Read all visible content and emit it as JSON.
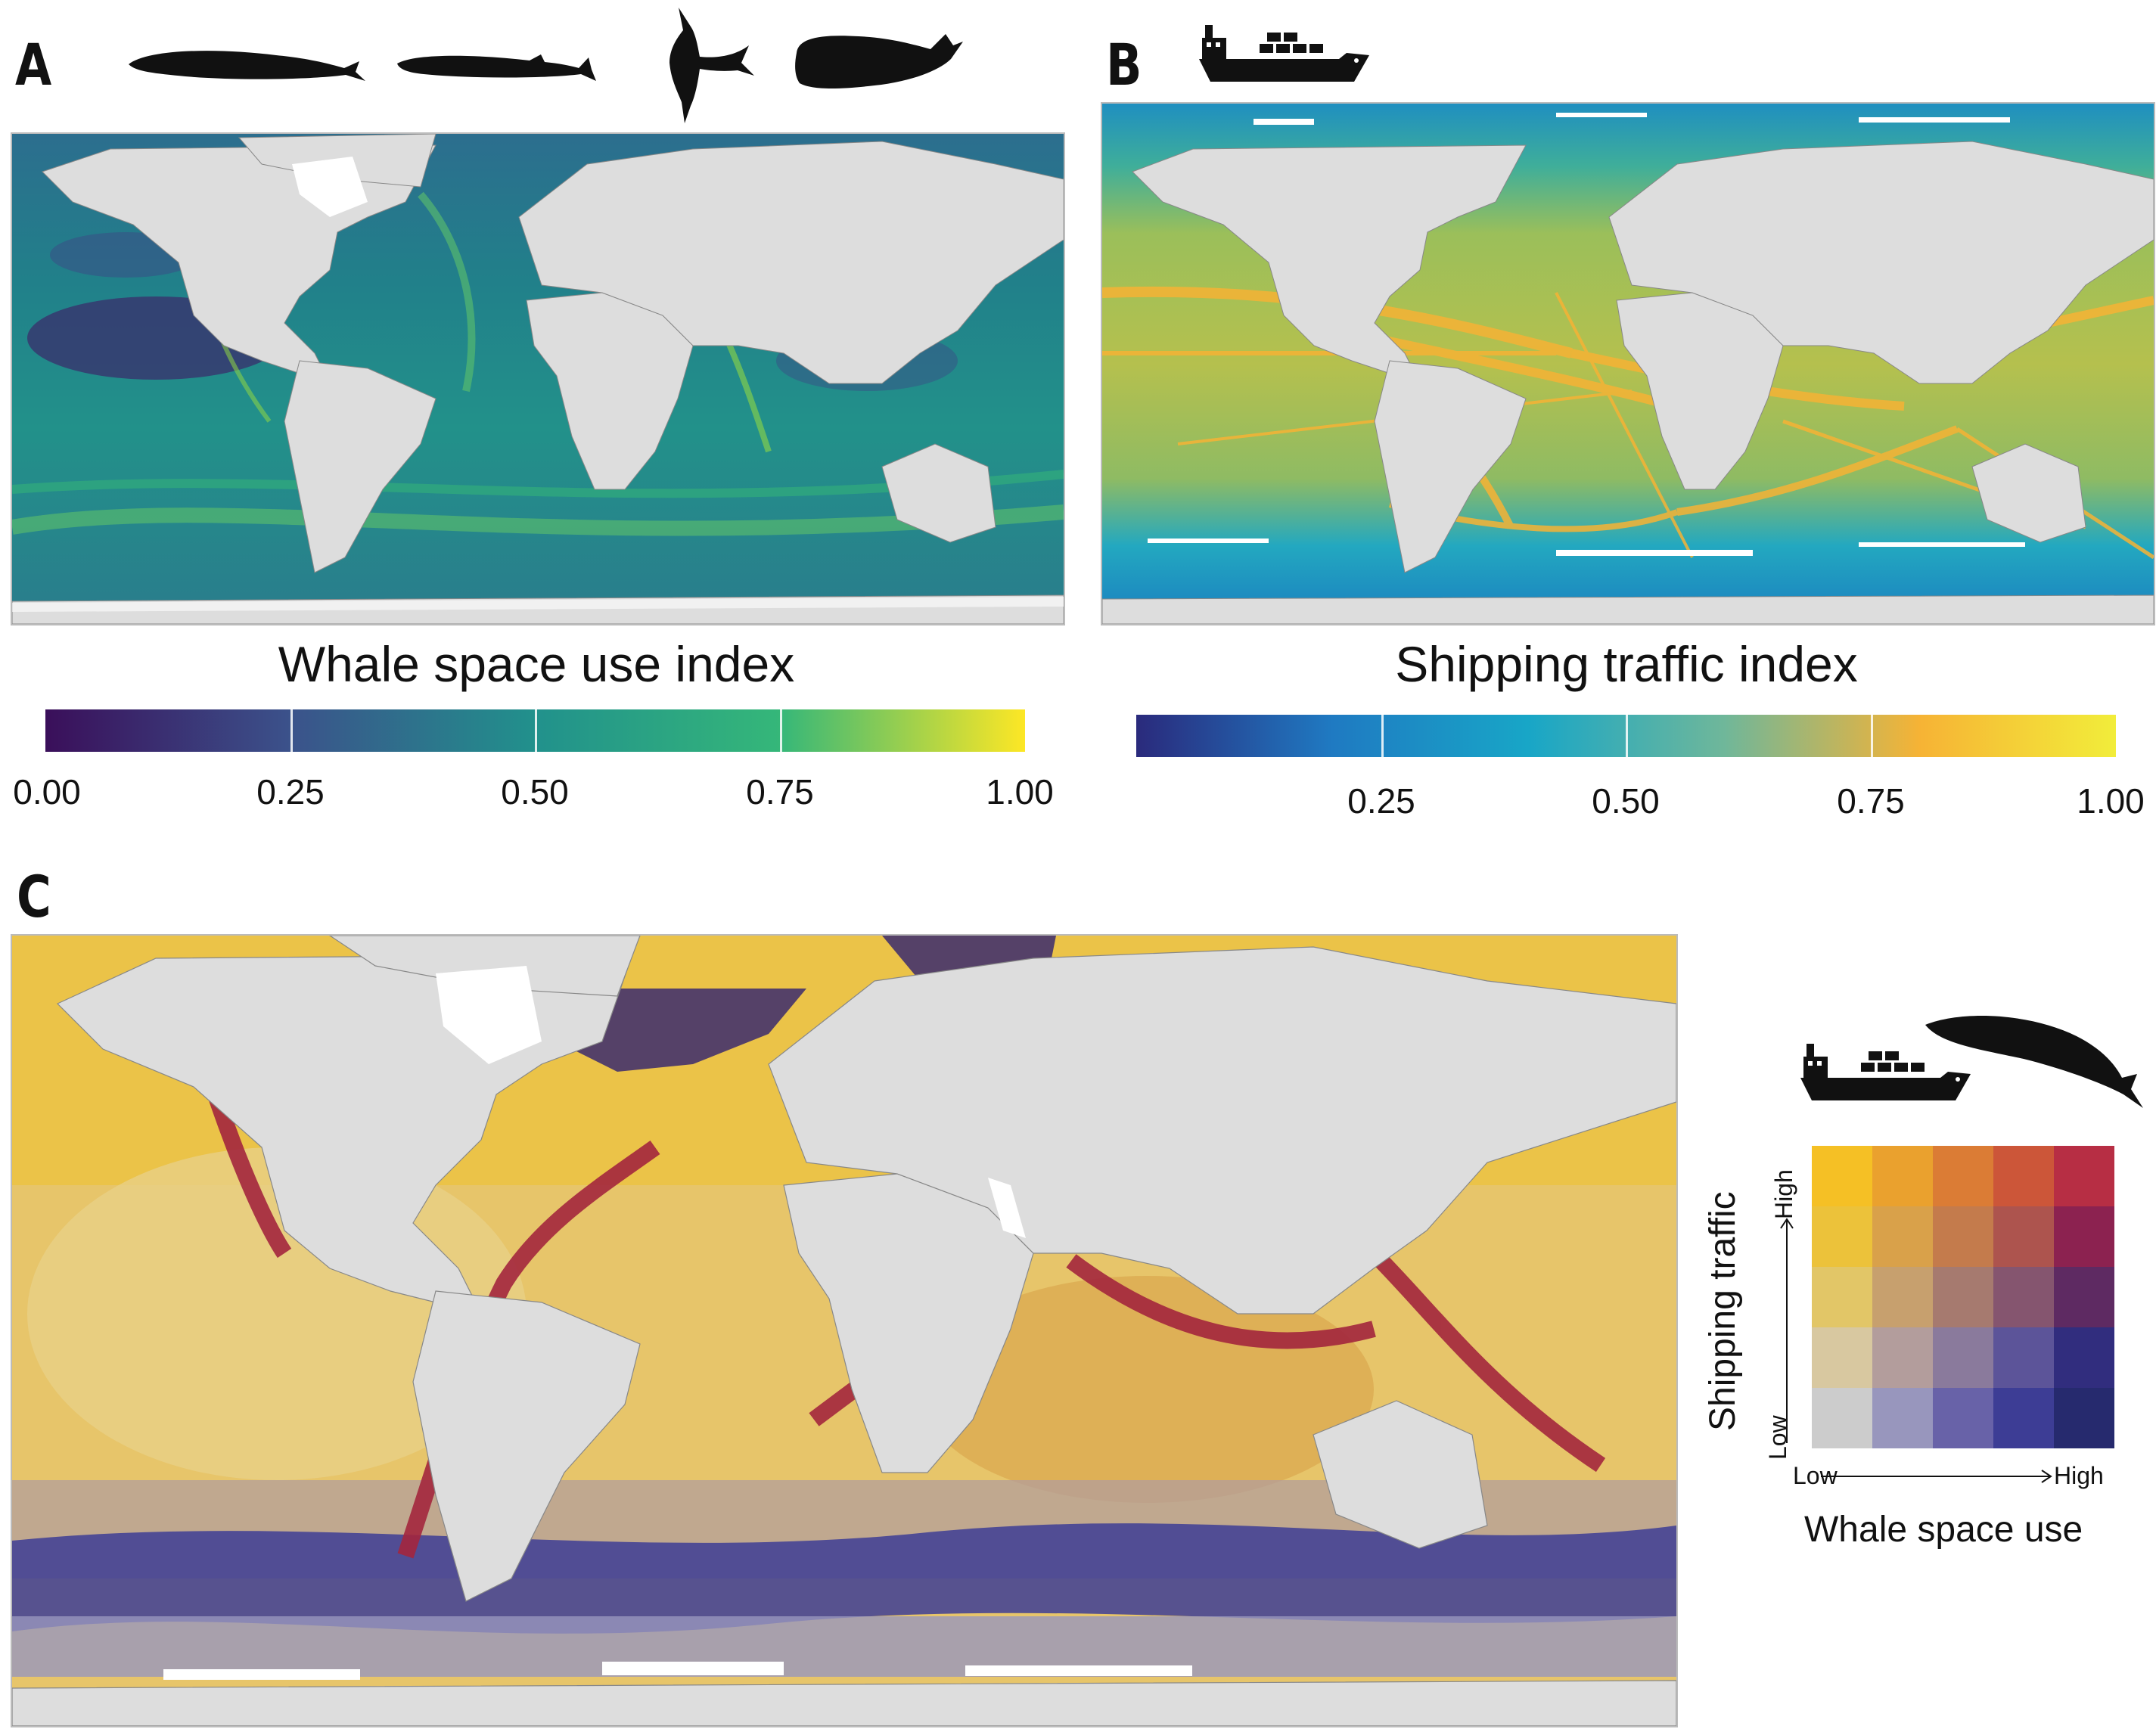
{
  "panels": {
    "a": {
      "letter": "A",
      "colorbar_title": "Whale space use index",
      "ticks": [
        "0.00",
        "0.25",
        "0.50",
        "0.75",
        "1.00"
      ],
      "tick_values": [
        0,
        0.25,
        0.5,
        0.75,
        1
      ]
    },
    "b": {
      "letter": "B",
      "colorbar_title": "Shipping traffic index",
      "ticks": [
        "0.25",
        "0.50",
        "0.75",
        "1.00"
      ],
      "tick_values": [
        0.25,
        0.5,
        0.75,
        1
      ]
    },
    "c": {
      "letter": "C"
    }
  },
  "legend": {
    "y_title": "Shipping traffic",
    "x_title": "Whale space use",
    "y_low": "Low",
    "y_high": "High",
    "x_low": "Low",
    "x_high": "High",
    "grid_colors": [
      [
        "#f5c025",
        "#eaa12e",
        "#db7c35",
        "#cc5639",
        "#b72e44"
      ],
      [
        "#ecc23a",
        "#d9a14a",
        "#c47b4c",
        "#ad544e",
        "#8c2250"
      ],
      [
        "#e2c667",
        "#c7a06e",
        "#a67a6f",
        "#85556f",
        "#5e2a62"
      ],
      [
        "#d8c8a0",
        "#b39d9c",
        "#8a7a9c",
        "#5c5499",
        "#312d7e"
      ],
      [
        "#cccccc",
        "#9896bd",
        "#6862a8",
        "#3d3d95",
        "#262a6e"
      ]
    ]
  },
  "colors": {
    "land": "#dddddd",
    "ice": "#ffffff",
    "viridis": [
      "#3a0f5a",
      "#3b528b",
      "#21918c",
      "#35b779",
      "#fde725"
    ],
    "shipping": [
      "#2a2a7c",
      "#1f7ac2",
      "#18a6c7",
      "#f6b335",
      "#f2ed3a"
    ]
  }
}
